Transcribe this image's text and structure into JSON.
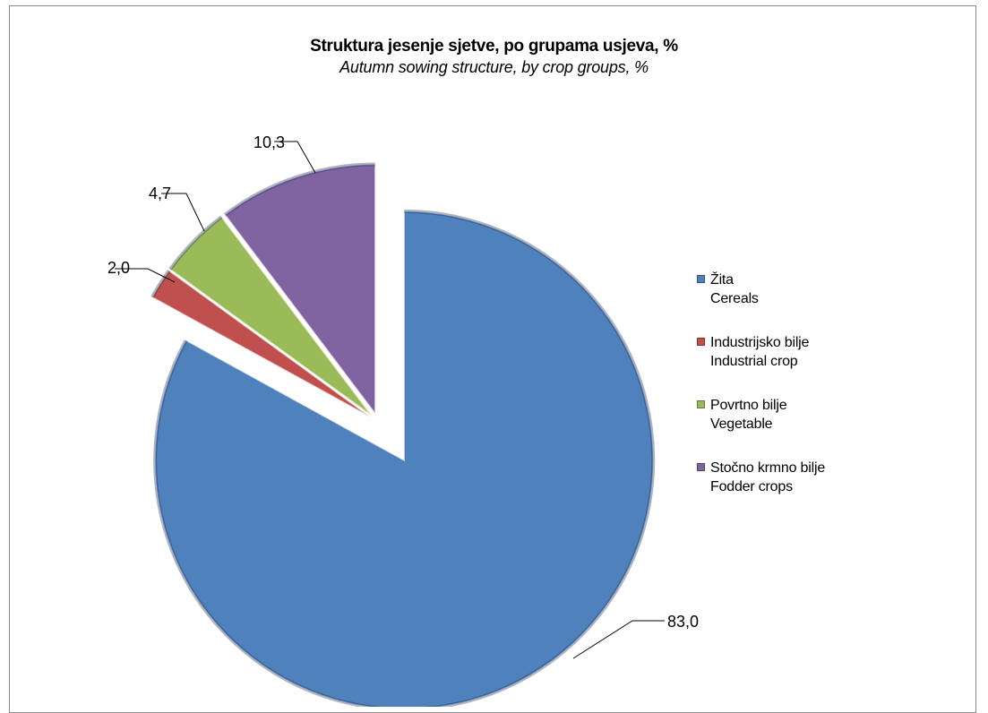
{
  "chart_data": {
    "type": "pie",
    "title": "Struktura jesenje sjetve, po grupama usjeva, %",
    "subtitle": "Autumn sowing structure, by crop groups, %",
    "categories": [
      "Žita Cereals",
      "Industrijsko bilje Industrial crop",
      "Povrtno bilje Vegetable",
      "Stočno krmno bilje Fodder crops"
    ],
    "values": [
      83.0,
      2.0,
      4.7,
      10.3
    ],
    "value_labels": [
      "83,0",
      "2,0",
      "4,7",
      "10,3"
    ],
    "colors": [
      "#4f81bd",
      "#c0504d",
      "#9bbb59",
      "#8064a2"
    ],
    "legend_position": "right",
    "legend": [
      {
        "line1": "Žita",
        "line2": "Cereals",
        "color": "#4f81bd"
      },
      {
        "line1": "Industrijsko bilje",
        "line2": "Industrial crop",
        "color": "#c0504d"
      },
      {
        "line1": "Povrtno bilje",
        "line2": "Vegetable",
        "color": "#9bbb59"
      },
      {
        "line1": "Stočno krmno bilje",
        "line2": "Fodder crops",
        "color": "#8064a2"
      }
    ],
    "exploded": true
  }
}
